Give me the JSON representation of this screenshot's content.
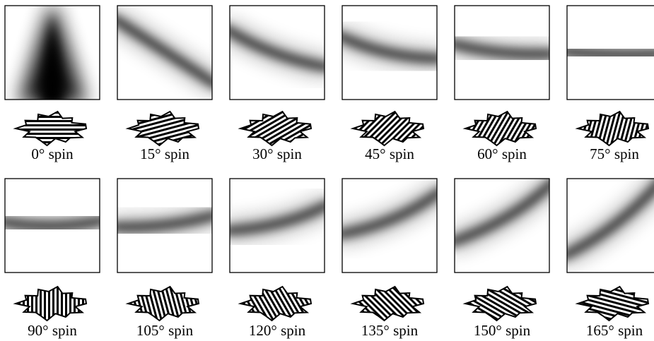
{
  "panels": [
    {
      "label": "0° spin"
    },
    {
      "label": "15° spin"
    },
    {
      "label": "30° spin"
    },
    {
      "label": "45° spin"
    },
    {
      "label": "60° spin"
    },
    {
      "label": "75° spin"
    },
    {
      "label": "90° spin"
    },
    {
      "label": "105° spin"
    },
    {
      "label": "120° spin"
    },
    {
      "label": "135° spin"
    },
    {
      "label": "150° spin"
    },
    {
      "label": "165° spin"
    }
  ]
}
